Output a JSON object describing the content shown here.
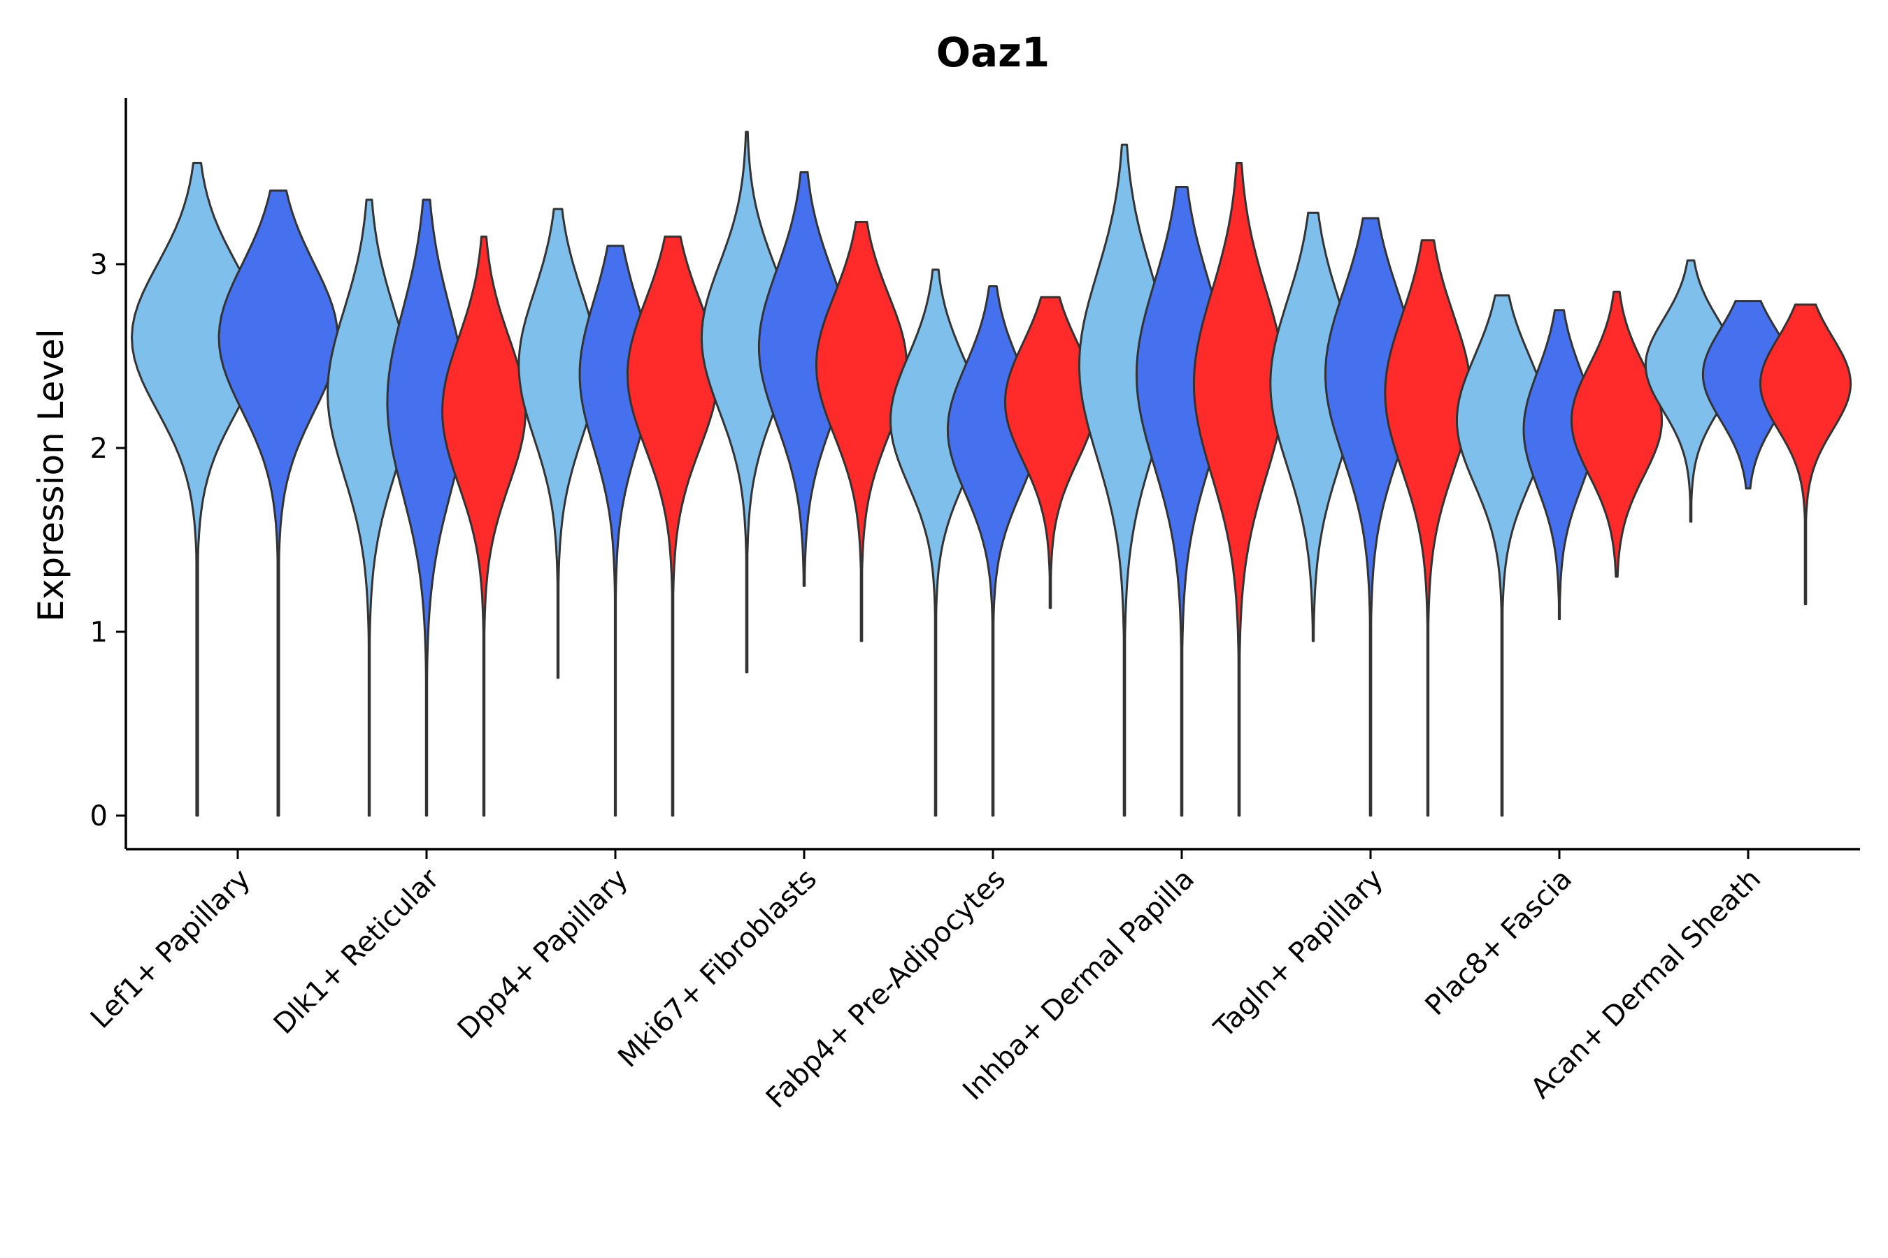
{
  "chart_data": {
    "type": "violin",
    "title": "Oaz1",
    "xlabel": "",
    "ylabel": "Expression Level",
    "ylim": [
      -0.2,
      3.9
    ],
    "yticks": [
      0,
      1,
      2,
      3
    ],
    "colors": {
      "group_a": "#7FBFEC",
      "group_b": "#4671EE",
      "group_c": "#FF2A2A",
      "outline": "#333333"
    },
    "categories": [
      {
        "label": "Lef1+ Papillary",
        "violins": [
          {
            "group": "a",
            "min": 0.0,
            "max": 3.55,
            "peak": 2.6,
            "width": 0.55,
            "spread": 0.4
          },
          {
            "group": "b",
            "min": 0.0,
            "max": 3.4,
            "peak": 2.6,
            "width": 0.5,
            "spread": 0.4
          }
        ]
      },
      {
        "label": "Dlk1+ Reticular",
        "violins": [
          {
            "group": "a",
            "min": 0.0,
            "max": 3.35,
            "peak": 2.3,
            "width": 0.35,
            "spread": 0.45
          },
          {
            "group": "b",
            "min": 0.0,
            "max": 3.35,
            "peak": 2.25,
            "width": 0.33,
            "spread": 0.5
          },
          {
            "group": "c",
            "min": 0.0,
            "max": 3.15,
            "peak": 2.2,
            "width": 0.35,
            "spread": 0.4
          }
        ]
      },
      {
        "label": "Dpp4+ Papillary",
        "violins": [
          {
            "group": "a",
            "min": 0.75,
            "max": 3.3,
            "peak": 2.45,
            "width": 0.33,
            "spread": 0.4
          },
          {
            "group": "b",
            "min": 0.0,
            "max": 3.1,
            "peak": 2.4,
            "width": 0.3,
            "spread": 0.4
          },
          {
            "group": "c",
            "min": 0.0,
            "max": 3.15,
            "peak": 2.4,
            "width": 0.38,
            "spread": 0.4
          }
        ]
      },
      {
        "label": "Mki67+ Fibroblasts",
        "violins": [
          {
            "group": "a",
            "min": 0.78,
            "max": 3.72,
            "peak": 2.6,
            "width": 0.38,
            "spread": 0.4
          },
          {
            "group": "b",
            "min": 1.25,
            "max": 3.5,
            "peak": 2.55,
            "width": 0.38,
            "spread": 0.42
          },
          {
            "group": "c",
            "min": 0.95,
            "max": 3.23,
            "peak": 2.45,
            "width": 0.38,
            "spread": 0.38
          }
        ]
      },
      {
        "label": "Fabp4+ Pre-Adipocytes",
        "violins": [
          {
            "group": "a",
            "min": 0.0,
            "max": 2.97,
            "peak": 2.15,
            "width": 0.38,
            "spread": 0.35
          },
          {
            "group": "b",
            "min": 0.0,
            "max": 2.88,
            "peak": 2.1,
            "width": 0.38,
            "spread": 0.35
          },
          {
            "group": "c",
            "min": 1.13,
            "max": 2.82,
            "peak": 2.25,
            "width": 0.38,
            "spread": 0.32
          }
        ]
      },
      {
        "label": "Inhba+ Dermal Papilla",
        "violins": [
          {
            "group": "a",
            "min": 0.0,
            "max": 3.65,
            "peak": 2.45,
            "width": 0.38,
            "spread": 0.5
          },
          {
            "group": "b",
            "min": 0.0,
            "max": 3.42,
            "peak": 2.4,
            "width": 0.38,
            "spread": 0.5
          },
          {
            "group": "c",
            "min": 0.0,
            "max": 3.55,
            "peak": 2.35,
            "width": 0.38,
            "spread": 0.5
          }
        ]
      },
      {
        "label": "Tagln+ Papillary",
        "violins": [
          {
            "group": "a",
            "min": 0.95,
            "max": 3.28,
            "peak": 2.35,
            "width": 0.36,
            "spread": 0.45
          },
          {
            "group": "b",
            "min": 0.0,
            "max": 3.25,
            "peak": 2.4,
            "width": 0.38,
            "spread": 0.45
          },
          {
            "group": "c",
            "min": 0.0,
            "max": 3.13,
            "peak": 2.3,
            "width": 0.36,
            "spread": 0.42
          }
        ]
      },
      {
        "label": "Plac8+ Fascia",
        "violins": [
          {
            "group": "a",
            "min": 0.0,
            "max": 2.83,
            "peak": 2.15,
            "width": 0.38,
            "spread": 0.35
          },
          {
            "group": "b",
            "min": 1.07,
            "max": 2.75,
            "peak": 2.1,
            "width": 0.3,
            "spread": 0.32
          },
          {
            "group": "c",
            "min": 1.3,
            "max": 2.85,
            "peak": 2.15,
            "width": 0.38,
            "spread": 0.3
          }
        ]
      },
      {
        "label": "Acan+ Dermal Sheath",
        "violins": [
          {
            "group": "a",
            "min": 1.6,
            "max": 3.02,
            "peak": 2.45,
            "width": 0.38,
            "spread": 0.25
          },
          {
            "group": "b",
            "min": 1.78,
            "max": 2.8,
            "peak": 2.4,
            "width": 0.38,
            "spread": 0.25
          },
          {
            "group": "c",
            "min": 1.15,
            "max": 2.78,
            "peak": 2.35,
            "width": 0.38,
            "spread": 0.25
          }
        ]
      }
    ]
  }
}
